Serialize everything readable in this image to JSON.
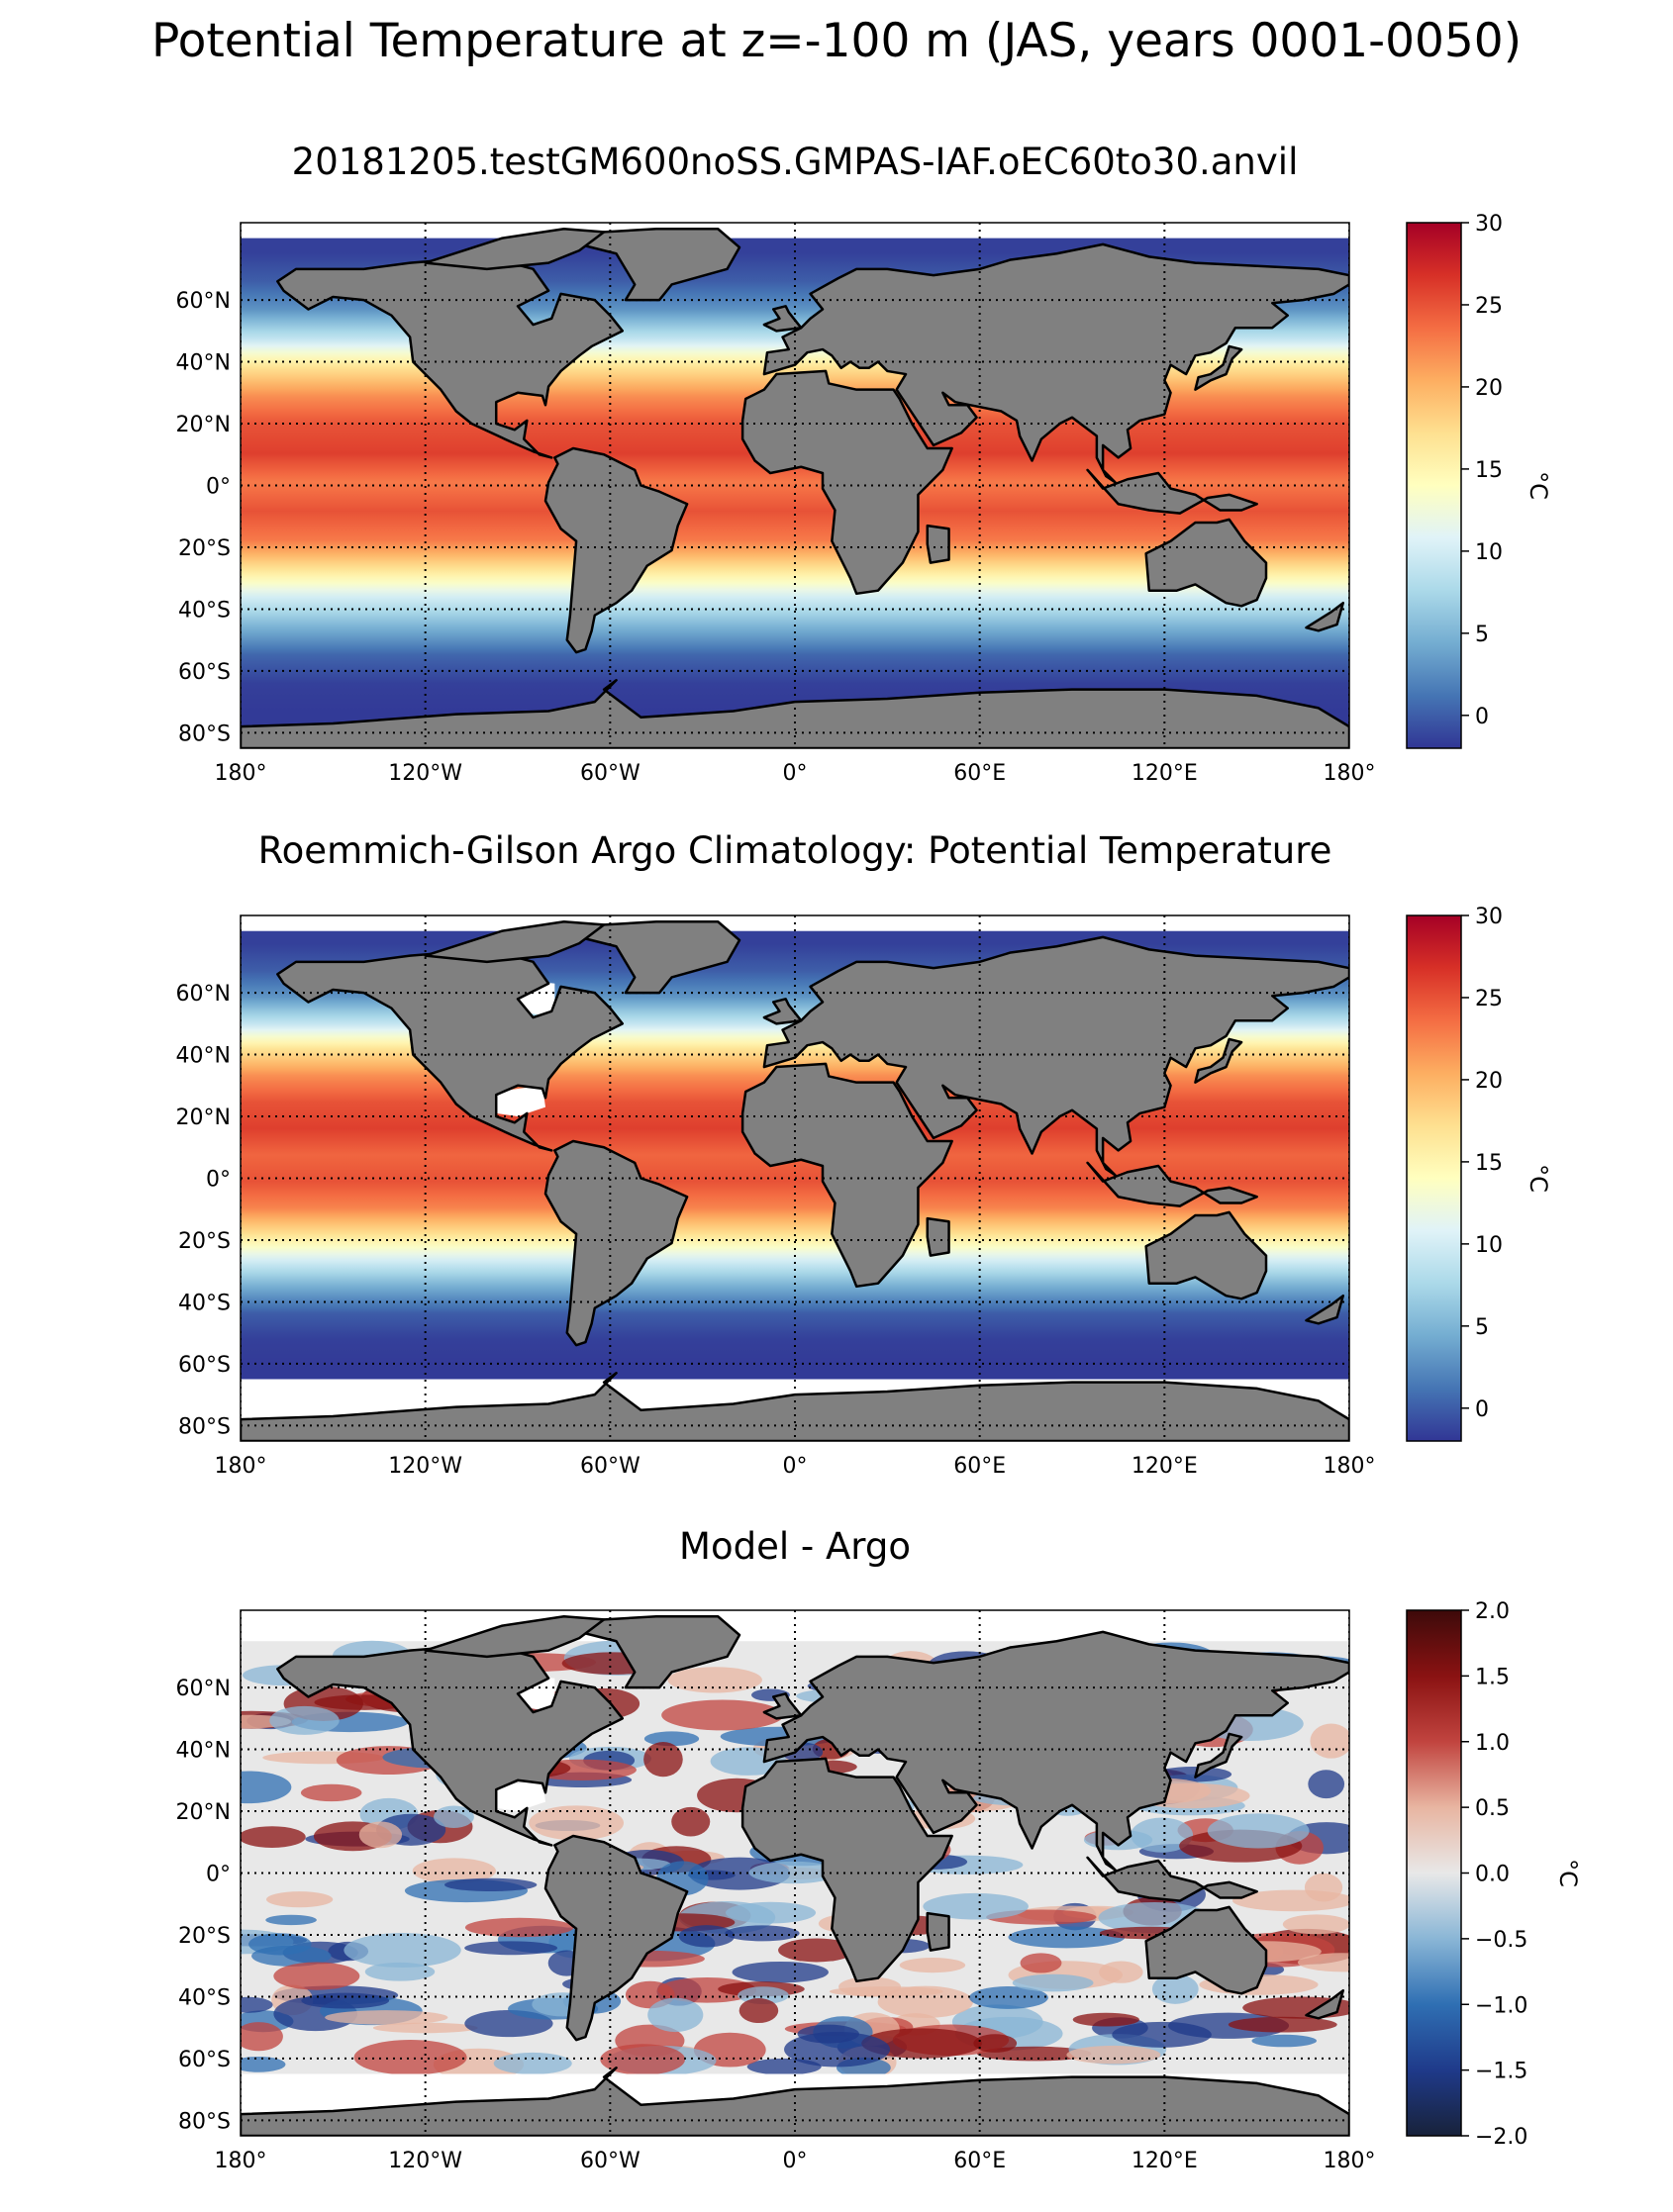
{
  "figure": {
    "suptitle": "Potential Temperature at z=-100 m (JAS, years 0001-0050)"
  },
  "colors": {
    "land": "#808080",
    "no_data": "#ffffff",
    "coast": "#000000",
    "gridline": "#000000",
    "temperature_cmap": [
      "#313695",
      "#4575b4",
      "#74add1",
      "#abd9e9",
      "#e0f3f8",
      "#ffffbf",
      "#fee090",
      "#fdae61",
      "#f46d43",
      "#d73027",
      "#a50026"
    ],
    "difference_cmap": [
      "#18223a",
      "#1f3a8a",
      "#2f6fb3",
      "#8ab6d6",
      "#e8e8e8",
      "#e8b5a1",
      "#c1443f",
      "#8a1212",
      "#3d0a0a"
    ]
  },
  "chart_data": [
    {
      "type": "heatmap",
      "title": "20181205.testGM600noSS.GMPAS-IAF.oEC60to30.anvil",
      "field": "model",
      "xlabel": "",
      "ylabel": "",
      "xlim": [
        -180,
        180
      ],
      "ylim": [
        -85,
        85
      ],
      "x_ticks": [
        -180,
        -120,
        -60,
        0,
        60,
        120,
        180
      ],
      "x_tick_labels": [
        "180°",
        "120°W",
        "60°W",
        "0°",
        "60°E",
        "120°E",
        "180°"
      ],
      "y_ticks": [
        -80,
        -60,
        -40,
        -20,
        0,
        20,
        40,
        60
      ],
      "y_tick_labels": [
        "80°S",
        "60°S",
        "40°S",
        "20°S",
        "0°",
        "20°N",
        "40°N",
        "60°N"
      ],
      "grid": "dotted",
      "colorbar": {
        "label": "°C",
        "vmin": -2,
        "vmax": 30,
        "ticks": [
          0,
          5,
          10,
          15,
          20,
          25,
          30
        ],
        "tick_labels": [
          "0",
          "5",
          "10",
          "15",
          "20",
          "25",
          "30"
        ]
      },
      "profile": {
        "lat": [
          -80,
          -70,
          -60,
          -50,
          -40,
          -30,
          -20,
          -10,
          0,
          10,
          20,
          30,
          40,
          50,
          60,
          70,
          80
        ],
        "temp": [
          -1.8,
          -1.5,
          0.5,
          5,
          10,
          17,
          23,
          25,
          23,
          26,
          25,
          22,
          17,
          9,
          3,
          0,
          -1.5
        ]
      },
      "data_cutoff_south": -78
    },
    {
      "type": "heatmap",
      "title": "Roemmich-Gilson Argo Climatology: Potential Temperature",
      "field": "observation",
      "xlabel": "",
      "ylabel": "",
      "xlim": [
        -180,
        180
      ],
      "ylim": [
        -85,
        85
      ],
      "x_ticks": [
        -180,
        -120,
        -60,
        0,
        60,
        120,
        180
      ],
      "x_tick_labels": [
        "180°",
        "120°W",
        "60°W",
        "0°",
        "60°E",
        "120°E",
        "180°"
      ],
      "y_ticks": [
        -80,
        -60,
        -40,
        -20,
        0,
        20,
        40,
        60
      ],
      "y_tick_labels": [
        "80°S",
        "60°S",
        "40°S",
        "20°S",
        "0°",
        "20°N",
        "40°N",
        "60°N"
      ],
      "grid": "dotted",
      "colorbar": {
        "label": "°C",
        "vmin": -2,
        "vmax": 30,
        "ticks": [
          0,
          5,
          10,
          15,
          20,
          25,
          30
        ],
        "tick_labels": [
          "0",
          "5",
          "10",
          "15",
          "20",
          "25",
          "30"
        ]
      },
      "profile": {
        "lat": [
          -80,
          -70,
          -60,
          -50,
          -40,
          -30,
          -20,
          -10,
          0,
          10,
          20,
          30,
          40,
          50,
          60,
          70,
          80
        ],
        "temp": [
          -1.8,
          -1.5,
          0,
          4.5,
          10,
          17,
          22.5,
          25,
          24,
          26,
          25,
          22,
          17,
          9,
          3,
          0,
          -1.5
        ]
      },
      "data_cutoff_south": -65
    },
    {
      "type": "heatmap",
      "title": "Model - Argo",
      "field": "difference",
      "xlabel": "",
      "ylabel": "",
      "xlim": [
        -180,
        180
      ],
      "ylim": [
        -85,
        85
      ],
      "x_ticks": [
        -180,
        -120,
        -60,
        0,
        60,
        120,
        180
      ],
      "x_tick_labels": [
        "180°",
        "120°W",
        "60°W",
        "0°",
        "60°E",
        "120°E",
        "180°"
      ],
      "y_ticks": [
        -80,
        -60,
        -40,
        -20,
        0,
        20,
        40,
        60
      ],
      "y_tick_labels": [
        "80°S",
        "60°S",
        "40°S",
        "20°S",
        "0°",
        "20°N",
        "40°N",
        "60°N"
      ],
      "grid": "dotted",
      "colorbar": {
        "label": "°C",
        "vmin": -2,
        "vmax": 2,
        "ticks": [
          -2,
          -1.5,
          -1,
          -0.5,
          0,
          0.5,
          1,
          1.5,
          2
        ],
        "tick_labels": [
          "−2.0",
          "−1.5",
          "−1.0",
          "−0.5",
          "0.0",
          "0.5",
          "1.0",
          "1.5",
          "2.0"
        ]
      },
      "data_cutoff_south": -65
    }
  ]
}
